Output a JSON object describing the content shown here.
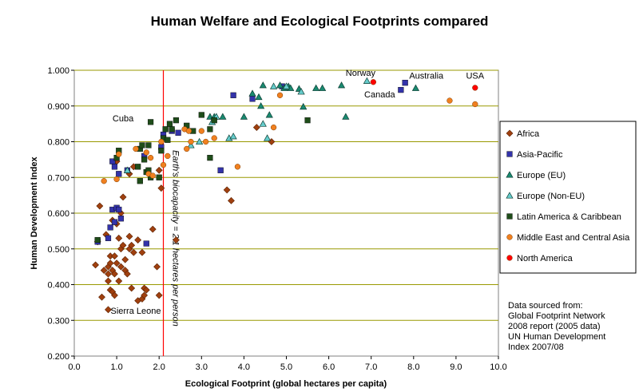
{
  "chart_data": {
    "type": "scatter",
    "title": "Human Welfare and Ecological Footprints compared",
    "xlabel": "Ecological Footprint (global hectares per capita)",
    "ylabel": "Human Development Index",
    "xlim": [
      0,
      10
    ],
    "ylim": [
      0.2,
      1.0
    ],
    "x_ticks": [
      "0.0",
      "1.0",
      "2.0",
      "3.0",
      "4.0",
      "5.0",
      "6.0",
      "7.0",
      "8.0",
      "9.0",
      "10.0"
    ],
    "y_ticks": [
      "0.200",
      "0.300",
      "0.400",
      "0.500",
      "0.600",
      "0.700",
      "0.800",
      "0.900",
      "1.000"
    ],
    "grid": "horizontal",
    "legend_position": "right",
    "reference_line": {
      "x": 2.1,
      "label": "Earth's biocapacity = 2.1 hectares per person",
      "color": "#ff0000"
    },
    "annotations": [
      {
        "text": "Norway",
        "x": 6.75,
        "y": 0.984
      },
      {
        "text": "Australia",
        "x": 8.3,
        "y": 0.977
      },
      {
        "text": "USA",
        "x": 9.45,
        "y": 0.977
      },
      {
        "text": "Canada",
        "x": 7.2,
        "y": 0.924
      },
      {
        "text": "Cuba",
        "x": 1.15,
        "y": 0.857
      },
      {
        "text": "Sierra Leone",
        "x": 1.45,
        "y": 0.318
      }
    ],
    "series": [
      {
        "name": "Africa",
        "marker": "diamond",
        "color": "#a0400f",
        "points": [
          [
            0.5,
            0.455
          ],
          [
            0.55,
            0.52
          ],
          [
            0.6,
            0.62
          ],
          [
            0.65,
            0.365
          ],
          [
            0.7,
            0.44
          ],
          [
            0.75,
            0.54
          ],
          [
            0.8,
            0.45
          ],
          [
            0.8,
            0.43
          ],
          [
            0.8,
            0.41
          ],
          [
            0.8,
            0.33
          ],
          [
            0.85,
            0.48
          ],
          [
            0.85,
            0.385
          ],
          [
            0.9,
            0.58
          ],
          [
            0.9,
            0.44
          ],
          [
            0.9,
            0.38
          ],
          [
            0.95,
            0.48
          ],
          [
            0.95,
            0.43
          ],
          [
            0.95,
            0.37
          ],
          [
            1.0,
            0.57
          ],
          [
            1.0,
            0.46
          ],
          [
            1.05,
            0.41
          ],
          [
            1.05,
            0.53
          ],
          [
            1.1,
            0.6
          ],
          [
            1.1,
            0.5
          ],
          [
            1.1,
            0.45
          ],
          [
            1.15,
            0.645
          ],
          [
            1.15,
            0.51
          ],
          [
            1.2,
            0.47
          ],
          [
            1.2,
            0.44
          ],
          [
            1.25,
            0.43
          ],
          [
            1.3,
            0.535
          ],
          [
            1.3,
            0.5
          ],
          [
            1.3,
            0.71
          ],
          [
            1.35,
            0.51
          ],
          [
            1.35,
            0.39
          ],
          [
            1.4,
            0.49
          ],
          [
            1.5,
            0.525
          ],
          [
            1.5,
            0.355
          ],
          [
            1.6,
            0.49
          ],
          [
            1.6,
            0.36
          ],
          [
            1.65,
            0.39
          ],
          [
            1.65,
            0.37
          ],
          [
            1.7,
            0.385
          ],
          [
            1.85,
            0.555
          ],
          [
            1.95,
            0.45
          ],
          [
            2.0,
            0.37
          ],
          [
            2.05,
            0.67
          ],
          [
            2.0,
            0.72
          ],
          [
            2.4,
            0.525
          ],
          [
            3.6,
            0.665
          ],
          [
            3.7,
            0.635
          ],
          [
            4.3,
            0.84
          ],
          [
            4.65,
            0.8
          ],
          [
            1.4,
            0.73
          ],
          [
            1.0,
            0.745
          ],
          [
            0.85,
            0.46
          ]
        ]
      },
      {
        "name": "Asia-Pacific",
        "marker": "square",
        "color": "#3333aa",
        "points": [
          [
            0.55,
            0.52
          ],
          [
            0.8,
            0.53
          ],
          [
            0.85,
            0.56
          ],
          [
            0.9,
            0.745
          ],
          [
            0.9,
            0.61
          ],
          [
            0.95,
            0.575
          ],
          [
            0.95,
            0.73
          ],
          [
            1.0,
            0.615
          ],
          [
            1.05,
            0.61
          ],
          [
            1.05,
            0.71
          ],
          [
            1.1,
            0.585
          ],
          [
            1.25,
            0.72
          ],
          [
            1.7,
            0.515
          ],
          [
            1.65,
            0.76
          ],
          [
            2.05,
            0.785
          ],
          [
            2.1,
            0.82
          ],
          [
            2.3,
            0.83
          ],
          [
            2.45,
            0.825
          ],
          [
            3.45,
            0.72
          ],
          [
            3.75,
            0.93
          ],
          [
            4.2,
            0.92
          ],
          [
            4.9,
            0.955
          ],
          [
            7.7,
            0.945
          ],
          [
            7.8,
            0.965
          ]
        ]
      },
      {
        "name": "Europe (EU)",
        "marker": "triangle",
        "color": "#1a8a70",
        "points": [
          [
            3.2,
            0.87
          ],
          [
            3.3,
            0.87
          ],
          [
            3.5,
            0.87
          ],
          [
            4.0,
            0.87
          ],
          [
            4.2,
            0.935
          ],
          [
            4.35,
            0.925
          ],
          [
            4.4,
            0.9
          ],
          [
            4.45,
            0.958
          ],
          [
            4.6,
            0.875
          ],
          [
            4.85,
            0.958
          ],
          [
            4.95,
            0.95
          ],
          [
            5.05,
            0.955
          ],
          [
            5.1,
            0.95
          ],
          [
            5.3,
            0.948
          ],
          [
            5.4,
            0.898
          ],
          [
            5.7,
            0.95
          ],
          [
            5.85,
            0.95
          ],
          [
            6.3,
            0.958
          ],
          [
            6.4,
            0.87
          ],
          [
            8.05,
            0.95
          ]
        ]
      },
      {
        "name": "Europe (Non-EU)",
        "marker": "triangle",
        "color": "#66cccc",
        "points": [
          [
            1.25,
            0.72
          ],
          [
            2.75,
            0.79
          ],
          [
            2.95,
            0.8
          ],
          [
            3.25,
            0.855
          ],
          [
            3.35,
            0.87
          ],
          [
            3.65,
            0.81
          ],
          [
            3.75,
            0.815
          ],
          [
            4.45,
            0.85
          ],
          [
            4.55,
            0.81
          ],
          [
            4.7,
            0.955
          ],
          [
            5.0,
            0.955
          ],
          [
            5.35,
            0.94
          ],
          [
            6.9,
            0.97
          ]
        ]
      },
      {
        "name": "Latin America & Caribbean",
        "marker": "square",
        "color": "#1f4d1a",
        "points": [
          [
            0.55,
            0.525
          ],
          [
            1.0,
            0.755
          ],
          [
            1.05,
            0.775
          ],
          [
            1.5,
            0.73
          ],
          [
            1.55,
            0.78
          ],
          [
            1.55,
            0.69
          ],
          [
            1.6,
            0.79
          ],
          [
            1.65,
            0.75
          ],
          [
            1.7,
            0.715
          ],
          [
            1.75,
            0.79
          ],
          [
            1.75,
            0.72
          ],
          [
            1.8,
            0.7
          ],
          [
            1.8,
            0.855
          ],
          [
            2.0,
            0.7
          ],
          [
            2.05,
            0.775
          ],
          [
            2.1,
            0.81
          ],
          [
            2.15,
            0.835
          ],
          [
            2.2,
            0.805
          ],
          [
            2.25,
            0.85
          ],
          [
            2.3,
            0.835
          ],
          [
            2.4,
            0.86
          ],
          [
            2.65,
            0.845
          ],
          [
            2.8,
            0.83
          ],
          [
            3.0,
            0.875
          ],
          [
            3.2,
            0.835
          ],
          [
            3.2,
            0.755
          ],
          [
            3.3,
            0.86
          ],
          [
            5.5,
            0.86
          ]
        ]
      },
      {
        "name": "Middle East and Central Asia",
        "marker": "circle",
        "color": "#f08020",
        "points": [
          [
            0.7,
            0.69
          ],
          [
            1.0,
            0.695
          ],
          [
            1.05,
            0.765
          ],
          [
            1.45,
            0.78
          ],
          [
            1.7,
            0.77
          ],
          [
            1.75,
            0.71
          ],
          [
            1.8,
            0.755
          ],
          [
            1.85,
            0.705
          ],
          [
            2.05,
            0.8
          ],
          [
            2.1,
            0.735
          ],
          [
            2.2,
            0.76
          ],
          [
            2.6,
            0.835
          ],
          [
            2.65,
            0.78
          ],
          [
            2.7,
            0.83
          ],
          [
            2.75,
            0.8
          ],
          [
            3.0,
            0.83
          ],
          [
            3.1,
            0.8
          ],
          [
            3.3,
            0.81
          ],
          [
            3.85,
            0.73
          ],
          [
            4.7,
            0.84
          ],
          [
            4.85,
            0.93
          ],
          [
            8.85,
            0.915
          ],
          [
            9.45,
            0.905
          ]
        ]
      },
      {
        "name": "North America",
        "marker": "circle",
        "color": "#ff0000",
        "points": [
          [
            7.05,
            0.967
          ],
          [
            9.45,
            0.951
          ]
        ]
      }
    ]
  },
  "source_note": {
    "lines": [
      "Data sourced from:",
      "Global Footprint Network",
      "2008 report (2005 data)",
      "UN Human Development",
      "Index 2007/08"
    ]
  }
}
